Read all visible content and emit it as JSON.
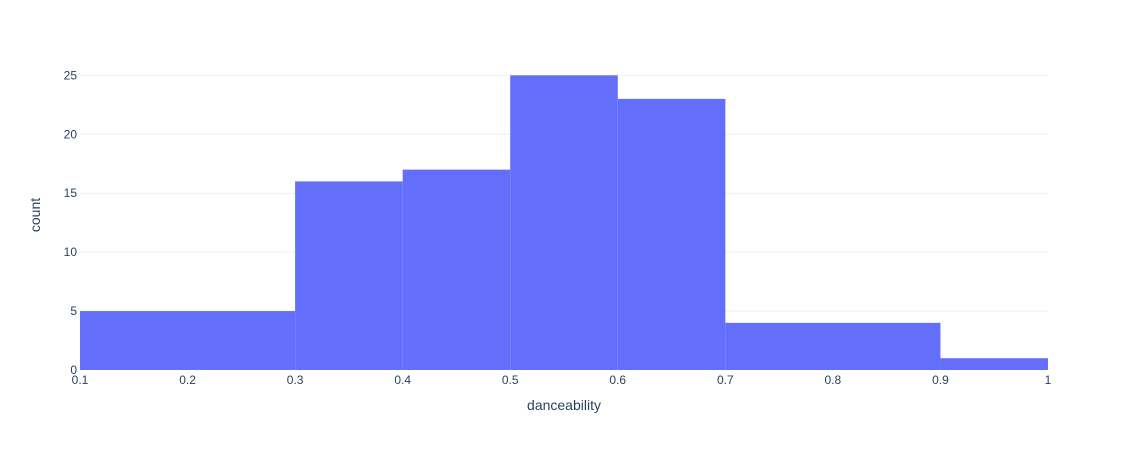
{
  "chart_data": {
    "type": "bar",
    "subtype": "histogram",
    "bins": [
      {
        "start": 0.1,
        "end": 0.3,
        "count": 5
      },
      {
        "start": 0.3,
        "end": 0.4,
        "count": 16
      },
      {
        "start": 0.4,
        "end": 0.5,
        "count": 17
      },
      {
        "start": 0.5,
        "end": 0.6,
        "count": 25
      },
      {
        "start": 0.6,
        "end": 0.7,
        "count": 23
      },
      {
        "start": 0.7,
        "end": 0.9,
        "count": 4
      },
      {
        "start": 0.9,
        "end": 1.0,
        "count": 1
      }
    ],
    "title": "",
    "xlabel": "danceability",
    "ylabel": "count",
    "xlim": [
      0.1,
      1.0
    ],
    "ylim": [
      0,
      26.3
    ],
    "x_ticks": [
      0.1,
      0.2,
      0.3,
      0.4,
      0.5,
      0.6,
      0.7,
      0.8,
      0.9,
      1.0
    ],
    "x_tick_labels": [
      "0.1",
      "0.2",
      "0.3",
      "0.4",
      "0.5",
      "0.6",
      "0.7",
      "0.8",
      "0.9",
      "1"
    ],
    "y_ticks": [
      0,
      5,
      10,
      15,
      20,
      25
    ],
    "y_tick_labels": [
      "0",
      "5",
      "10",
      "15",
      "20",
      "25"
    ],
    "grid": true,
    "legend": "none",
    "colors": {
      "bar": "#636efa",
      "grid": "#ebf0f8",
      "text": "#2a3f5f",
      "background": "#ffffff"
    }
  }
}
